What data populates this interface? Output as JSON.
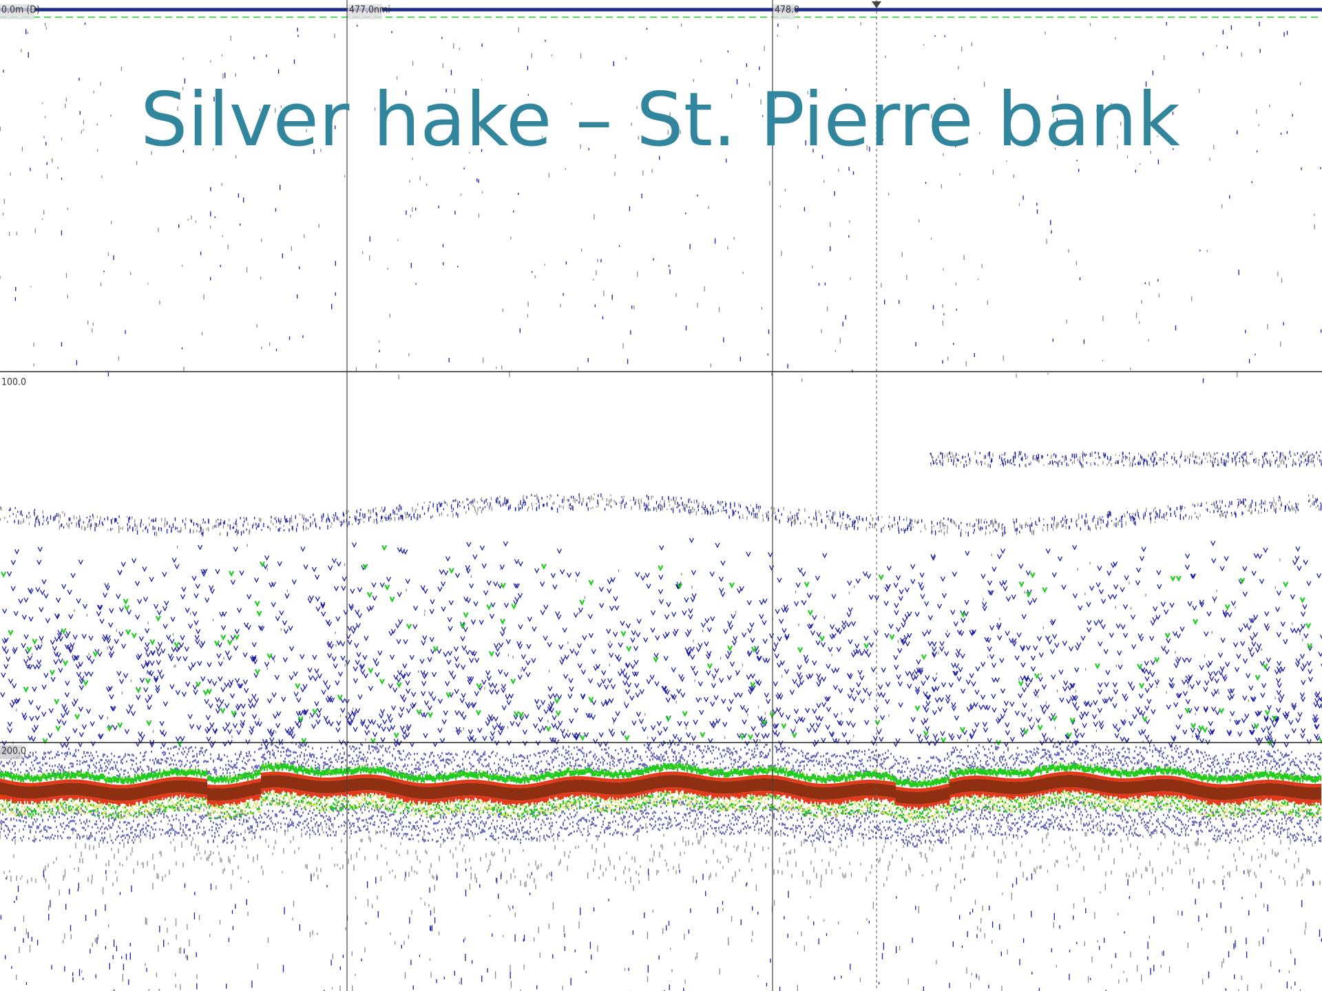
{
  "title": "Silver hake – St. Pierre bank",
  "echogram": {
    "depth_labels": [
      "0.0m (D)",
      "100.0",
      "200.0"
    ],
    "distance_labels": [
      "477.0nmi",
      "478.0"
    ]
  }
}
